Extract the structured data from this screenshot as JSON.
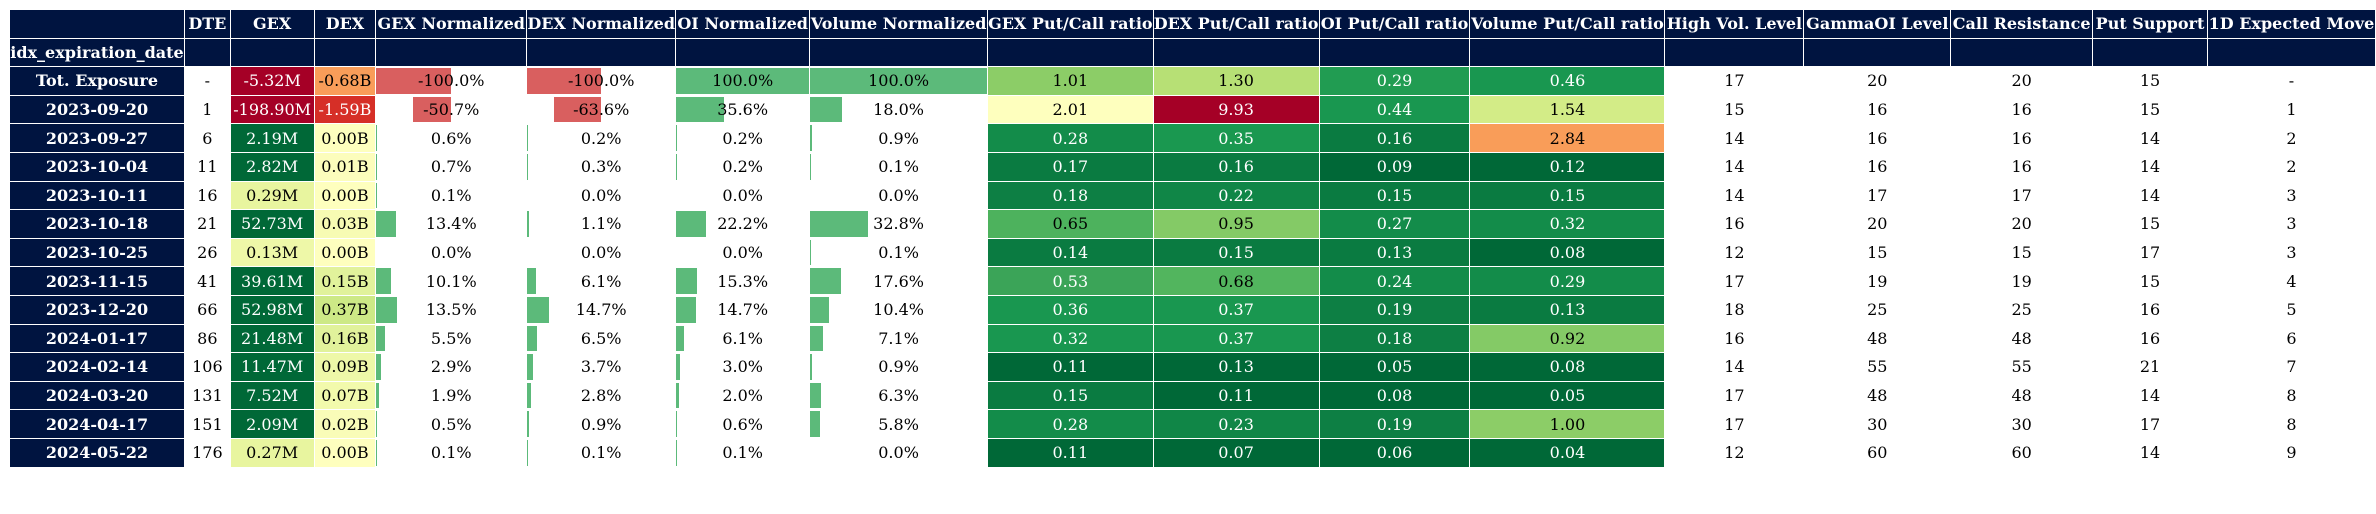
{
  "chart_data": {
    "type": "table",
    "index_name": "idx_expiration_date",
    "columns": [
      "DTE",
      "GEX",
      "DEX",
      "GEX Normalized",
      "DEX Normalized",
      "OI Normalized",
      "Volume Normalized",
      "GEX Put/Call ratio",
      "DEX Put/Call ratio",
      "OI Put/Call ratio",
      "Volume Put/Call ratio",
      "High Vol. Level",
      "GammaOI Level",
      "Call Resistance",
      "Put Support",
      "1D Expected Move"
    ],
    "colors": {
      "header_bg": "#001440",
      "header_fg": "#ffffff",
      "bar_negative": "#d95f5f",
      "bar_positive": "#5cba7a"
    },
    "rows": [
      {
        "label": "Tot. Exposure",
        "dte": "-",
        "gex": "-5.32M",
        "dex": "-0.68B",
        "gex_norm": "-100.0%",
        "dex_norm": "-100.0%",
        "oi_norm": "100.0%",
        "vol_norm": "100.0%",
        "gex_pc": "1.01",
        "dex_pc": "1.30",
        "oi_pc": "0.29",
        "vol_pc": "0.46",
        "hvl": "17",
        "goi": "20",
        "cr": "20",
        "ps": "15",
        "em": "-",
        "gex_norm_v": -100.0,
        "dex_norm_v": -100.0,
        "oi_norm_v": 100.0,
        "vol_norm_v": 100.0,
        "gex_bg": "#a50026",
        "dex_bg": "#f99d59",
        "gex_pc_bg": "#8ccd67",
        "dex_pc_bg": "#b7e075",
        "oi_pc_bg": "#219c52",
        "vol_pc_bg": "#199750"
      },
      {
        "label": "2023-09-20",
        "dte": "1",
        "gex": "-198.90M",
        "dex": "-1.59B",
        "gex_norm": "-50.7%",
        "dex_norm": "-63.6%",
        "oi_norm": "35.6%",
        "vol_norm": "18.0%",
        "gex_pc": "2.01",
        "dex_pc": "9.93",
        "oi_pc": "0.44",
        "vol_pc": "1.54",
        "hvl": "15",
        "goi": "16",
        "cr": "16",
        "ps": "15",
        "em": "1",
        "gex_norm_v": -50.7,
        "dex_norm_v": -63.6,
        "oi_norm_v": 35.6,
        "vol_norm_v": 18.0,
        "gex_bg": "#a50026",
        "dex_bg": "#d62f27",
        "gex_pc_bg": "#feffbe",
        "dex_pc_bg": "#a50026",
        "oi_pc_bg": "#199750",
        "vol_pc_bg": "#d3ec87"
      },
      {
        "label": "2023-09-27",
        "dte": "6",
        "gex": "2.19M",
        "dex": "0.00B",
        "gex_norm": "0.6%",
        "dex_norm": "0.2%",
        "oi_norm": "0.2%",
        "vol_norm": "0.9%",
        "gex_pc": "0.28",
        "dex_pc": "0.35",
        "oi_pc": "0.16",
        "vol_pc": "2.84",
        "hvl": "14",
        "goi": "16",
        "cr": "16",
        "ps": "14",
        "em": "2",
        "gex_norm_v": 0.6,
        "dex_norm_v": 0.2,
        "oi_norm_v": 0.2,
        "vol_norm_v": 0.9,
        "gex_bg": "#006837",
        "dex_bg": "#feffbe",
        "gex_pc_bg": "#138c4a",
        "dex_pc_bg": "#1a9850",
        "oi_pc_bg": "#0a7b41",
        "vol_pc_bg": "#f99d59"
      },
      {
        "label": "2023-10-04",
        "dte": "11",
        "gex": "2.82M",
        "dex": "0.01B",
        "gex_norm": "0.7%",
        "dex_norm": "0.3%",
        "oi_norm": "0.2%",
        "vol_norm": "0.1%",
        "gex_pc": "0.17",
        "dex_pc": "0.16",
        "oi_pc": "0.09",
        "vol_pc": "0.12",
        "hvl": "14",
        "goi": "16",
        "cr": "16",
        "ps": "14",
        "em": "2",
        "gex_norm_v": 0.7,
        "dex_norm_v": 0.3,
        "oi_norm_v": 0.2,
        "vol_norm_v": 0.1,
        "gex_bg": "#006837",
        "dex_bg": "#fcfdbc",
        "gex_pc_bg": "#0a7b41",
        "dex_pc_bg": "#0a7b41",
        "oi_pc_bg": "#006837",
        "vol_pc_bg": "#006837"
      },
      {
        "label": "2023-10-11",
        "dte": "16",
        "gex": "0.29M",
        "dex": "0.00B",
        "gex_norm": "0.1%",
        "dex_norm": "0.0%",
        "oi_norm": "0.0%",
        "vol_norm": "0.0%",
        "gex_pc": "0.18",
        "dex_pc": "0.22",
        "oi_pc": "0.15",
        "vol_pc": "0.15",
        "hvl": "14",
        "goi": "17",
        "cr": "17",
        "ps": "14",
        "em": "3",
        "gex_norm_v": 0.1,
        "dex_norm_v": 0.0,
        "oi_norm_v": 0.0,
        "vol_norm_v": 0.0,
        "gex_bg": "#e8f59f",
        "dex_bg": "#feffbe",
        "gex_pc_bg": "#0d7f44",
        "dex_pc_bg": "#108647",
        "oi_pc_bg": "#0a7b41",
        "vol_pc_bg": "#0a7b41"
      },
      {
        "label": "2023-10-18",
        "dte": "21",
        "gex": "52.73M",
        "dex": "0.03B",
        "gex_norm": "13.4%",
        "dex_norm": "1.1%",
        "oi_norm": "22.2%",
        "vol_norm": "32.8%",
        "gex_pc": "0.65",
        "dex_pc": "0.95",
        "oi_pc": "0.27",
        "vol_pc": "0.32",
        "hvl": "16",
        "goi": "20",
        "cr": "20",
        "ps": "15",
        "em": "3",
        "gex_norm_v": 13.4,
        "dex_norm_v": 1.1,
        "oi_norm_v": 22.2,
        "vol_norm_v": 32.8,
        "gex_bg": "#006837",
        "dex_bg": "#f7fbb3",
        "gex_pc_bg": "#4db25d",
        "dex_pc_bg": "#84ca66",
        "oi_pc_bg": "#138c4a",
        "vol_pc_bg": "#138c4a"
      },
      {
        "label": "2023-10-25",
        "dte": "26",
        "gex": "0.13M",
        "dex": "0.00B",
        "gex_norm": "0.0%",
        "dex_norm": "0.0%",
        "oi_norm": "0.0%",
        "vol_norm": "0.1%",
        "gex_pc": "0.14",
        "dex_pc": "0.15",
        "oi_pc": "0.13",
        "vol_pc": "0.08",
        "hvl": "12",
        "goi": "15",
        "cr": "15",
        "ps": "17",
        "em": "3",
        "gex_norm_v": 0.0,
        "dex_norm_v": 0.0,
        "oi_norm_v": 0.0,
        "vol_norm_v": 0.1,
        "gex_bg": "#eef8a8",
        "dex_bg": "#feffbe",
        "gex_pc_bg": "#0a7b41",
        "dex_pc_bg": "#0a7b41",
        "oi_pc_bg": "#0a7b41",
        "vol_pc_bg": "#006837"
      },
      {
        "label": "2023-11-15",
        "dte": "41",
        "gex": "39.61M",
        "dex": "0.15B",
        "gex_norm": "10.1%",
        "dex_norm": "6.1%",
        "oi_norm": "15.3%",
        "vol_norm": "17.6%",
        "gex_pc": "0.53",
        "dex_pc": "0.68",
        "oi_pc": "0.24",
        "vol_pc": "0.29",
        "hvl": "17",
        "goi": "19",
        "cr": "19",
        "ps": "15",
        "em": "4",
        "gex_norm_v": 10.1,
        "dex_norm_v": 6.1,
        "oi_norm_v": 15.3,
        "vol_norm_v": 17.6,
        "gex_bg": "#006837",
        "dex_bg": "#e1f29b",
        "gex_pc_bg": "#3ba458",
        "dex_pc_bg": "#52b55e",
        "oi_pc_bg": "#138c4a",
        "vol_pc_bg": "#138c4a"
      },
      {
        "label": "2023-12-20",
        "dte": "66",
        "gex": "52.98M",
        "dex": "0.37B",
        "gex_norm": "13.5%",
        "dex_norm": "14.7%",
        "oi_norm": "14.7%",
        "vol_norm": "10.4%",
        "gex_pc": "0.36",
        "dex_pc": "0.37",
        "oi_pc": "0.19",
        "vol_pc": "0.13",
        "hvl": "18",
        "goi": "25",
        "cr": "25",
        "ps": "16",
        "em": "5",
        "gex_norm_v": 13.5,
        "dex_norm_v": 14.7,
        "oi_norm_v": 14.7,
        "vol_norm_v": 10.4,
        "gex_bg": "#006837",
        "dex_bg": "#cde986",
        "gex_pc_bg": "#199750",
        "dex_pc_bg": "#199750",
        "oi_pc_bg": "#0d7f44",
        "vol_pc_bg": "#0a7b41"
      },
      {
        "label": "2024-01-17",
        "dte": "86",
        "gex": "21.48M",
        "dex": "0.16B",
        "gex_norm": "5.5%",
        "dex_norm": "6.5%",
        "oi_norm": "6.1%",
        "vol_norm": "7.1%",
        "gex_pc": "0.32",
        "dex_pc": "0.37",
        "oi_pc": "0.18",
        "vol_pc": "0.92",
        "hvl": "16",
        "goi": "48",
        "cr": "48",
        "ps": "16",
        "em": "6",
        "gex_norm_v": 5.5,
        "dex_norm_v": 6.5,
        "oi_norm_v": 6.1,
        "vol_norm_v": 7.1,
        "gex_bg": "#006837",
        "dex_bg": "#e1f29b",
        "gex_pc_bg": "#199750",
        "dex_pc_bg": "#199750",
        "oi_pc_bg": "#0d7f44",
        "vol_pc_bg": "#84ca66"
      },
      {
        "label": "2024-02-14",
        "dte": "106",
        "gex": "11.47M",
        "dex": "0.09B",
        "gex_norm": "2.9%",
        "dex_norm": "3.7%",
        "oi_norm": "3.0%",
        "vol_norm": "0.9%",
        "gex_pc": "0.11",
        "dex_pc": "0.13",
        "oi_pc": "0.05",
        "vol_pc": "0.08",
        "hvl": "14",
        "goi": "55",
        "cr": "55",
        "ps": "21",
        "em": "7",
        "gex_norm_v": 2.9,
        "dex_norm_v": 3.7,
        "oi_norm_v": 3.0,
        "vol_norm_v": 0.9,
        "gex_bg": "#006837",
        "dex_bg": "#eef8a8",
        "gex_pc_bg": "#006837",
        "dex_pc_bg": "#006837",
        "oi_pc_bg": "#006837",
        "vol_pc_bg": "#006837"
      },
      {
        "label": "2024-03-20",
        "dte": "131",
        "gex": "7.52M",
        "dex": "0.07B",
        "gex_norm": "1.9%",
        "dex_norm": "2.8%",
        "oi_norm": "2.0%",
        "vol_norm": "6.3%",
        "gex_pc": "0.15",
        "dex_pc": "0.11",
        "oi_pc": "0.08",
        "vol_pc": "0.05",
        "hvl": "17",
        "goi": "48",
        "cr": "48",
        "ps": "14",
        "em": "8",
        "gex_norm_v": 1.9,
        "dex_norm_v": 2.8,
        "oi_norm_v": 2.0,
        "vol_norm_v": 6.3,
        "gex_bg": "#006837",
        "dex_bg": "#f2faac",
        "gex_pc_bg": "#0a7b41",
        "dex_pc_bg": "#006837",
        "oi_pc_bg": "#006837",
        "vol_pc_bg": "#006837"
      },
      {
        "label": "2024-04-17",
        "dte": "151",
        "gex": "2.09M",
        "dex": "0.02B",
        "gex_norm": "0.5%",
        "dex_norm": "0.9%",
        "oi_norm": "0.6%",
        "vol_norm": "5.8%",
        "gex_pc": "0.28",
        "dex_pc": "0.23",
        "oi_pc": "0.19",
        "vol_pc": "1.00",
        "hvl": "17",
        "goi": "30",
        "cr": "30",
        "ps": "17",
        "em": "8",
        "gex_norm_v": 0.5,
        "dex_norm_v": 0.9,
        "oi_norm_v": 0.6,
        "vol_norm_v": 5.8,
        "gex_bg": "#006837",
        "dex_bg": "#f9fcb8",
        "gex_pc_bg": "#138c4a",
        "dex_pc_bg": "#108647",
        "oi_pc_bg": "#0d7f44",
        "vol_pc_bg": "#8ccd67"
      },
      {
        "label": "2024-05-22",
        "dte": "176",
        "gex": "0.27M",
        "dex": "0.00B",
        "gex_norm": "0.1%",
        "dex_norm": "0.1%",
        "oi_norm": "0.1%",
        "vol_norm": "0.0%",
        "gex_pc": "0.11",
        "dex_pc": "0.07",
        "oi_pc": "0.06",
        "vol_pc": "0.04",
        "hvl": "12",
        "goi": "60",
        "cr": "60",
        "ps": "14",
        "em": "9",
        "gex_norm_v": 0.1,
        "dex_norm_v": 0.1,
        "oi_norm_v": 0.1,
        "vol_norm_v": 0.0,
        "gex_bg": "#e8f59f",
        "dex_bg": "#feffbe",
        "gex_pc_bg": "#006837",
        "dex_pc_bg": "#006837",
        "oi_pc_bg": "#006837",
        "vol_pc_bg": "#006837"
      }
    ]
  }
}
